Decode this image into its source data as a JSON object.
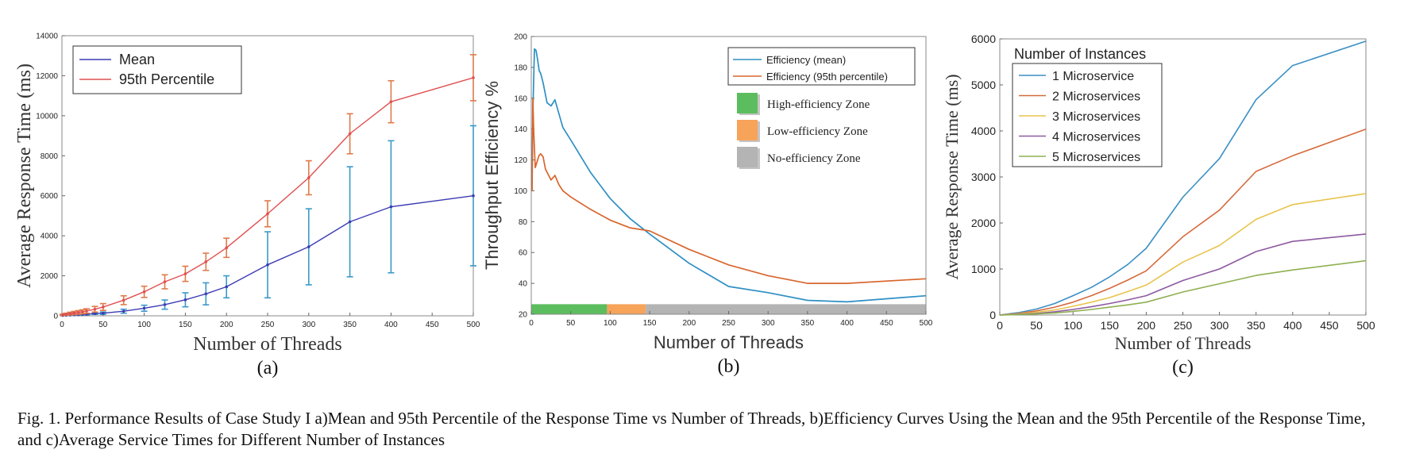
{
  "figure": {
    "caption": "Fig. 1.  Performance Results of Case Study I a)Mean and 95th Percentile of the Response Time vs Number of Threads, b)Efficiency Curves Using the Mean and the 95th Percentile of the Response Time, and c)Average Service Times for Different Number of Instances"
  },
  "colors": {
    "mean_a": "#3c3cb4",
    "p95_a": "#e05050",
    "errbar_mean": "#3a9ac8",
    "errbar_p95": "#e07a4a",
    "eff_mean": "#2e8fc4",
    "eff_p95": "#d8662e",
    "zone_high": "#5cbd5e",
    "zone_low": "#f7a35a",
    "zone_none": "#b4b4b4",
    "c1": "#3a8fc4",
    "c2": "#d56a3c",
    "c3": "#e8c44c",
    "c4": "#8d5aa0",
    "c5": "#8fb050"
  },
  "chart_data": [
    {
      "type": "line",
      "panel_label": "(a)",
      "xlabel": "Number of Threads",
      "ylabel": "Average Response Time (ms)",
      "xlim": [
        0,
        500
      ],
      "ylim": [
        0,
        14000
      ],
      "xticks": [
        0,
        50,
        100,
        150,
        200,
        250,
        300,
        350,
        400,
        450,
        500
      ],
      "yticks": [
        0,
        2000,
        4000,
        6000,
        8000,
        10000,
        12000,
        14000
      ],
      "ytick_labels": [
        "0",
        "2000",
        "4000",
        "6000",
        "8000",
        "10000",
        "12000",
        "14000"
      ],
      "legend": "top-left",
      "grid": false,
      "x": [
        1,
        5,
        10,
        15,
        20,
        25,
        30,
        40,
        50,
        75,
        100,
        125,
        150,
        175,
        200,
        250,
        300,
        350,
        400,
        500
      ],
      "series": [
        {
          "name": "Mean",
          "values": [
            20,
            30,
            40,
            50,
            60,
            70,
            80,
            110,
            130,
            230,
            380,
            560,
            800,
            1100,
            1450,
            2550,
            3450,
            4700,
            5450,
            6000
          ],
          "err": [
            10,
            15,
            20,
            20,
            25,
            30,
            35,
            40,
            60,
            100,
            150,
            230,
            350,
            550,
            550,
            1650,
            1900,
            2750,
            3300,
            3500
          ]
        },
        {
          "name": "95th Percentile",
          "values": [
            50,
            80,
            110,
            140,
            170,
            200,
            240,
            330,
            440,
            780,
            1200,
            1700,
            2100,
            2700,
            3400,
            5100,
            6900,
            9100,
            10700,
            11900
          ],
          "err": [
            30,
            50,
            70,
            80,
            90,
            100,
            110,
            140,
            170,
            220,
            280,
            350,
            380,
            430,
            480,
            650,
            850,
            1000,
            1050,
            1150
          ]
        }
      ]
    },
    {
      "type": "line",
      "panel_label": "(b)",
      "xlabel": "Number of Threads",
      "ylabel": "Throughput Efficiency %",
      "xlim": [
        0,
        500
      ],
      "ylim": [
        20,
        200
      ],
      "xticks": [
        0,
        50,
        100,
        150,
        200,
        250,
        300,
        350,
        400,
        450,
        500
      ],
      "yticks": [
        20,
        40,
        60,
        80,
        100,
        120,
        140,
        160,
        180,
        200
      ],
      "legend": "top-right",
      "grid": false,
      "series": [
        {
          "name": "Efficiency (mean)",
          "x": [
            1,
            2,
            4,
            6,
            8,
            10,
            12,
            15,
            20,
            25,
            30,
            35,
            40,
            50,
            75,
            100,
            125,
            150,
            200,
            250,
            300,
            350,
            400,
            500
          ],
          "values": [
            100,
            150,
            192,
            191,
            185,
            178,
            176,
            170,
            157,
            155,
            159,
            150,
            141,
            133,
            112,
            95,
            82,
            72,
            53,
            38,
            34,
            29,
            28,
            32
          ]
        },
        {
          "name": "Efficiency (95th percentile)",
          "x": [
            1,
            2,
            3,
            5,
            8,
            10,
            12,
            15,
            18,
            20,
            25,
            30,
            35,
            40,
            50,
            75,
            100,
            125,
            150,
            200,
            250,
            300,
            350,
            400,
            500
          ],
          "values": [
            100,
            160,
            140,
            115,
            120,
            123,
            124,
            122,
            114,
            112,
            107,
            110,
            104,
            100,
            96,
            88,
            81,
            76,
            74,
            62,
            52,
            45,
            40,
            40,
            43
          ]
        }
      ],
      "zones": [
        {
          "name": "High-efficiency Zone",
          "from": 0,
          "to": 96,
          "color_key": "zone_high"
        },
        {
          "name": "Low-efficiency Zone",
          "from": 96,
          "to": 145,
          "color_key": "zone_low"
        },
        {
          "name": "No-efficiency Zone",
          "from": 145,
          "to": 500,
          "color_key": "zone_none"
        }
      ]
    },
    {
      "type": "line",
      "panel_label": "(c)",
      "xlabel": "Number of Threads",
      "ylabel": "Average Response Time (ms)",
      "xlim": [
        0,
        500
      ],
      "ylim": [
        0,
        6000
      ],
      "xticks": [
        0,
        50,
        100,
        150,
        200,
        250,
        300,
        350,
        400,
        450,
        500
      ],
      "yticks": [
        0,
        1000,
        2000,
        3000,
        4000,
        5000,
        6000
      ],
      "legend": "top-left",
      "legend_title": "Number of Instances",
      "grid": false,
      "x": [
        0,
        25,
        50,
        75,
        100,
        125,
        150,
        175,
        200,
        250,
        300,
        350,
        400,
        500
      ],
      "series": [
        {
          "name": "1 Microservice",
          "values": [
            0,
            50,
            130,
            250,
            420,
            600,
            830,
            1100,
            1450,
            2560,
            3400,
            4680,
            5420,
            5950
          ]
        },
        {
          "name": "2 Microservices",
          "values": [
            0,
            35,
            90,
            170,
            280,
            420,
            580,
            760,
            960,
            1700,
            2280,
            3120,
            3460,
            4040
          ]
        },
        {
          "name": "3 Microservices",
          "values": [
            0,
            25,
            60,
            110,
            190,
            280,
            380,
            510,
            650,
            1150,
            1510,
            2080,
            2400,
            2640
          ]
        },
        {
          "name": "4 Microservices",
          "values": [
            0,
            15,
            35,
            70,
            120,
            180,
            250,
            330,
            420,
            750,
            1000,
            1380,
            1600,
            1760
          ]
        },
        {
          "name": "5 Microservices",
          "values": [
            0,
            10,
            25,
            45,
            80,
            120,
            170,
            220,
            280,
            500,
            680,
            860,
            980,
            1180
          ]
        }
      ]
    }
  ]
}
